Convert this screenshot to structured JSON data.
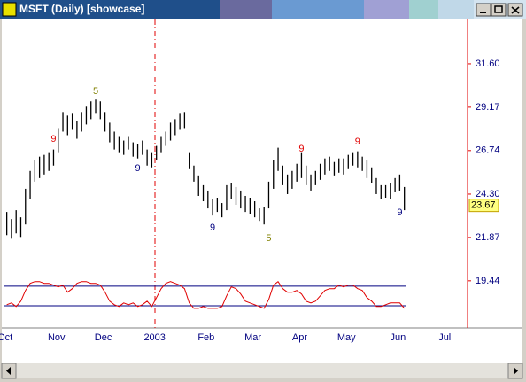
{
  "window": {
    "title": "MSFT (Daily) [showcase]"
  },
  "chart_data": {
    "type": "hilo",
    "categories": [
      "Oct",
      null,
      null,
      null,
      null,
      null,
      null,
      null,
      null,
      null,
      null,
      "Nov",
      null,
      null,
      null,
      null,
      null,
      null,
      null,
      null,
      null,
      "Dec",
      null,
      null,
      null,
      null,
      null,
      null,
      null,
      null,
      null,
      null,
      "2003",
      null,
      null,
      null,
      null,
      null,
      null,
      null,
      null,
      null,
      null,
      "Feb",
      null,
      null,
      null,
      null,
      null,
      null,
      null,
      null,
      null,
      "Mar",
      null,
      null,
      null,
      null,
      null,
      null,
      null,
      null,
      null,
      "Apr",
      null,
      null,
      null,
      null,
      null,
      null,
      null,
      null,
      null,
      "May",
      null,
      null,
      null,
      null,
      null,
      null,
      null,
      null,
      null,
      null,
      "Jun",
      null,
      null,
      null,
      null,
      null,
      null,
      null,
      null,
      null,
      "Jul",
      null,
      null,
      null,
      null
    ],
    "high": [
      23.3,
      22.9,
      23.4,
      23.0,
      24.6,
      25.6,
      26.2,
      26.4,
      26.5,
      26.6,
      26.8,
      28.0,
      28.9,
      28.7,
      28.8,
      28.4,
      28.9,
      29.2,
      29.5,
      29.6,
      29.5,
      28.9,
      28.3,
      27.8,
      27.5,
      27.3,
      27.5,
      27.2,
      27.1,
      27.3,
      26.8,
      26.6,
      27.0,
      27.5,
      27.8,
      28.3,
      28.5,
      28.8,
      28.9,
      26.6,
      25.9,
      25.3,
      24.8,
      24.5,
      24.0,
      24.1,
      23.8,
      24.8,
      24.9,
      24.7,
      24.5,
      24.2,
      24.1,
      23.9,
      23.5,
      23.6,
      25.0,
      26.2,
      26.9,
      25.9,
      25.4,
      25.6,
      26.0,
      26.6,
      25.9,
      25.4,
      25.6,
      26.0,
      26.3,
      26.4,
      26.1,
      26.3,
      26.3,
      26.5,
      26.6,
      26.7,
      26.4,
      26.2,
      25.8,
      25.2,
      24.8,
      24.8,
      24.9,
      25.2,
      25.4,
      24.7,
      null,
      null,
      null,
      null,
      null,
      null,
      null,
      null,
      null,
      null,
      null,
      null,
      null
    ],
    "low": [
      22.0,
      21.8,
      22.1,
      21.9,
      22.6,
      24.0,
      25.0,
      25.2,
      25.4,
      25.6,
      25.9,
      26.6,
      27.8,
      27.6,
      27.9,
      27.4,
      27.8,
      28.2,
      28.5,
      28.8,
      28.5,
      27.8,
      27.2,
      26.8,
      26.6,
      26.5,
      26.8,
      26.4,
      26.3,
      26.5,
      25.9,
      25.8,
      26.2,
      26.6,
      27.0,
      27.3,
      27.6,
      27.9,
      28.0,
      25.7,
      25.0,
      24.2,
      23.9,
      23.5,
      23.1,
      23.3,
      23.0,
      23.4,
      24.0,
      23.7,
      23.5,
      23.3,
      23.2,
      23.0,
      22.8,
      22.6,
      23.5,
      24.6,
      25.6,
      24.8,
      24.3,
      24.6,
      25.0,
      25.2,
      24.8,
      24.5,
      24.8,
      25.1,
      25.4,
      25.6,
      25.3,
      25.5,
      25.4,
      25.7,
      25.9,
      25.8,
      25.6,
      25.2,
      24.9,
      24.3,
      24.0,
      24.1,
      24.0,
      24.4,
      24.5,
      23.4,
      null,
      null,
      null,
      null,
      null,
      null,
      null,
      null,
      null,
      null,
      null,
      null,
      null
    ],
    "color": "#000000",
    "oscillator": {
      "color": "#e00000",
      "values": [
        18.1,
        18.2,
        18.0,
        18.3,
        18.9,
        19.3,
        19.4,
        19.4,
        19.3,
        19.3,
        19.2,
        19.1,
        19.2,
        18.8,
        19.0,
        19.3,
        19.4,
        19.4,
        19.3,
        19.3,
        19.2,
        18.8,
        18.3,
        18.1,
        18.0,
        18.2,
        18.1,
        18.2,
        18.0,
        18.1,
        18.3,
        18.0,
        18.5,
        19.0,
        19.3,
        19.4,
        19.3,
        19.2,
        19.0,
        18.2,
        17.9,
        17.9,
        18.0,
        17.9,
        17.9,
        17.9,
        18.0,
        18.6,
        19.1,
        19.0,
        18.7,
        18.3,
        18.2,
        18.1,
        18.0,
        17.9,
        18.4,
        19.2,
        19.4,
        19.0,
        18.8,
        18.8,
        18.9,
        18.7,
        18.3,
        18.2,
        18.3,
        18.6,
        18.9,
        19.0,
        19.0,
        19.2,
        19.1,
        19.2,
        19.2,
        19.0,
        18.9,
        18.5,
        18.3,
        18.0,
        18.0,
        18.1,
        18.2,
        18.2,
        18.2,
        17.9,
        null,
        null,
        null,
        null,
        null,
        null,
        null,
        null,
        null,
        null,
        null,
        null,
        null
      ],
      "levels": [
        19.14,
        18.04
      ],
      "level_color": "#000080"
    },
    "annotations": [
      {
        "text": "9",
        "x": 10,
        "y": 27.38,
        "color": "#e00000"
      },
      {
        "text": "5",
        "x": 19,
        "y": 30.06,
        "color": "#808000"
      },
      {
        "text": "9",
        "x": 28,
        "y": 25.74,
        "color": "#000080"
      },
      {
        "text": "9",
        "x": 44,
        "y": 22.41,
        "color": "#000080"
      },
      {
        "text": "5",
        "x": 56,
        "y": 21.82,
        "color": "#808000"
      },
      {
        "text": "9",
        "x": 63,
        "y": 26.83,
        "color": "#e00000"
      },
      {
        "text": "9",
        "x": 75,
        "y": 27.23,
        "color": "#e00000"
      },
      {
        "text": "9",
        "x": 84,
        "y": 23.26,
        "color": "#000080"
      }
    ],
    "last_value": 23.67,
    "ylim": [
      16.9,
      34.08
    ],
    "yticks": [
      {
        "value": 31.6,
        "label": "31.60"
      },
      29.17,
      26.74,
      {
        "value": 24.3,
        "label": "24.30"
      },
      21.87,
      19.44
    ]
  }
}
